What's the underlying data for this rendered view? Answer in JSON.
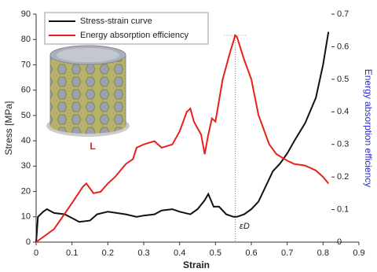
{
  "chart_data": {
    "type": "line",
    "x_label": "Strain",
    "y_label": "Stress [MPa]",
    "y2_label": "Energy absorption efficiency",
    "xlim": [
      0,
      0.9
    ],
    "xticks": [
      0,
      0.1,
      0.2,
      0.3,
      0.4,
      0.5,
      0.6,
      0.7,
      0.8,
      0.9
    ],
    "ylim": [
      0,
      90
    ],
    "yticks": [
      0,
      10,
      20,
      30,
      40,
      50,
      60,
      70,
      80,
      90
    ],
    "y2lim": [
      0,
      0.7
    ],
    "y2ticks": [
      0,
      0.1,
      0.2,
      0.3,
      0.4,
      0.5,
      0.6,
      0.7
    ],
    "y2_label_color": "#2b2bd6",
    "image_label": "L",
    "image_label_color": "#e0201b",
    "annotation": {
      "text": "εD",
      "x": 0.555
    },
    "series": [
      {
        "name": "Stress-strain curve",
        "color": "#111111",
        "x": [
          0,
          0.005,
          0.02,
          0.03,
          0.05,
          0.08,
          0.1,
          0.12,
          0.15,
          0.17,
          0.2,
          0.25,
          0.28,
          0.3,
          0.33,
          0.35,
          0.38,
          0.4,
          0.43,
          0.45,
          0.47,
          0.48,
          0.495,
          0.51,
          0.53,
          0.55,
          0.56,
          0.58,
          0.6,
          0.62,
          0.64,
          0.66,
          0.68,
          0.7,
          0.72,
          0.75,
          0.78,
          0.8,
          0.815
        ],
        "values": [
          0,
          10,
          12,
          13,
          11.5,
          11,
          9.5,
          8,
          8.5,
          11,
          12,
          11,
          10,
          10.5,
          11,
          12.5,
          13,
          12,
          11,
          13,
          16.5,
          19,
          14,
          14,
          11,
          10,
          10,
          11,
          13,
          16,
          22,
          28,
          31,
          35,
          40,
          47,
          57,
          70,
          83
        ]
      },
      {
        "name": "Energy absorption efficiency",
        "color": "#e8201a",
        "axis": "y2",
        "x": [
          0,
          0.05,
          0.1,
          0.13,
          0.14,
          0.16,
          0.18,
          0.2,
          0.22,
          0.25,
          0.27,
          0.28,
          0.3,
          0.33,
          0.35,
          0.38,
          0.4,
          0.42,
          0.43,
          0.44,
          0.46,
          0.47,
          0.48,
          0.49,
          0.5,
          0.52,
          0.54,
          0.555,
          0.56,
          0.58,
          0.6,
          0.62,
          0.65,
          0.67,
          0.7,
          0.72,
          0.75,
          0.78,
          0.8,
          0.815
        ],
        "values": [
          0,
          0.04,
          0.12,
          0.17,
          0.18,
          0.15,
          0.155,
          0.18,
          0.2,
          0.24,
          0.255,
          0.29,
          0.3,
          0.31,
          0.29,
          0.3,
          0.34,
          0.4,
          0.41,
          0.37,
          0.33,
          0.27,
          0.33,
          0.38,
          0.37,
          0.5,
          0.58,
          0.635,
          0.63,
          0.56,
          0.5,
          0.39,
          0.3,
          0.27,
          0.25,
          0.24,
          0.235,
          0.22,
          0.2,
          0.18
        ]
      }
    ]
  }
}
